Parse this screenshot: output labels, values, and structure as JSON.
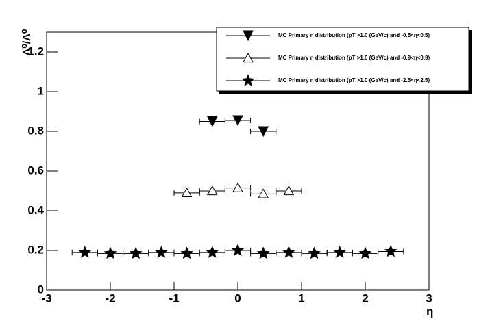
{
  "chart_data": {
    "type": "scatter",
    "xlabel": "η",
    "ylabel": "Λ̄⁰/Λ⁰",
    "xlim": [
      -3,
      3
    ],
    "ylim": [
      0,
      1.3
    ],
    "xticks": [
      -3,
      -2,
      -1,
      0,
      1,
      2,
      3
    ],
    "yticks": [
      0,
      0.2,
      0.4,
      0.6,
      0.8,
      1,
      1.2
    ],
    "legend": "top-right",
    "series": [
      {
        "name": "MC Primary η distribution (pT >1.0 (GeV/c) and -0.5<η<0.5)",
        "marker": "down-triangle",
        "color": "#000000",
        "x": [
          -0.4,
          0,
          0.4
        ],
        "values": [
          0.85,
          0.855,
          0.8
        ],
        "xerr": [
          0.2,
          0.2,
          0.2
        ]
      },
      {
        "name": "MC Primary η distribution (pT >1.0 (GeV/c) and -0.9<η<0.9)",
        "marker": "open-triangle",
        "color": "#000000",
        "x": [
          -0.8,
          -0.4,
          0,
          0.4,
          0.8
        ],
        "values": [
          0.49,
          0.5,
          0.515,
          0.485,
          0.5
        ],
        "xerr": [
          0.2,
          0.2,
          0.2,
          0.2,
          0.2
        ]
      },
      {
        "name": "MC Primary η distribution (pT >1.0 (GeV/c) and -2.5<η<2.5)",
        "marker": "star",
        "color": "#000000",
        "x": [
          -2.4,
          -2,
          -1.6,
          -1.2,
          -0.8,
          -0.4,
          0,
          0.4,
          0.8,
          1.2,
          1.6,
          2,
          2.4
        ],
        "values": [
          0.19,
          0.185,
          0.185,
          0.19,
          0.185,
          0.19,
          0.2,
          0.185,
          0.19,
          0.185,
          0.19,
          0.185,
          0.195
        ],
        "xerr": [
          0.2,
          0.2,
          0.2,
          0.2,
          0.2,
          0.2,
          0.2,
          0.2,
          0.2,
          0.2,
          0.2,
          0.2,
          0.2
        ]
      }
    ]
  }
}
